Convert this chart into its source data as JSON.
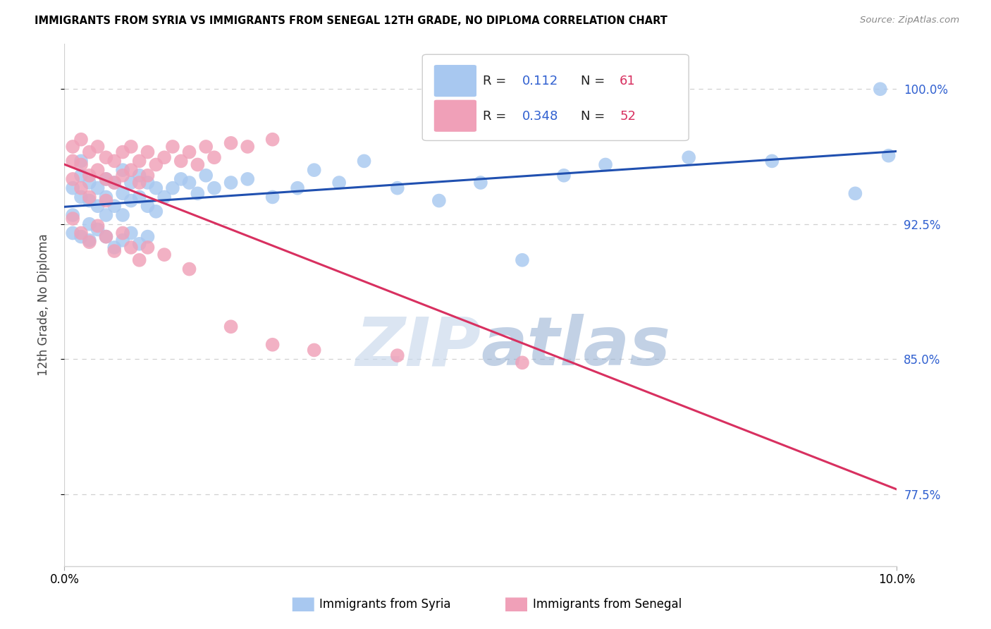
{
  "title": "IMMIGRANTS FROM SYRIA VS IMMIGRANTS FROM SENEGAL 12TH GRADE, NO DIPLOMA CORRELATION CHART",
  "source": "Source: ZipAtlas.com",
  "ylabel": "12th Grade, No Diploma",
  "color_syria": "#a8c8f0",
  "color_senegal": "#f0a0b8",
  "color_syria_line": "#2050b0",
  "color_senegal_line": "#d83060",
  "watermark_zip_color": "#c8d8ec",
  "watermark_atlas_color": "#90acd0",
  "grid_color": "#d0d0d0",
  "ytick_color": "#3060d0",
  "legend_R_color": "#3060d0",
  "legend_N_color": "#d83060",
  "legend_text_color": "#222222",
  "syria_R": "0.112",
  "syria_N": "61",
  "senegal_R": "0.348",
  "senegal_N": "52",
  "xlim": [
    0.0,
    0.1
  ],
  "ylim": [
    0.735,
    1.025
  ],
  "yticks": [
    0.775,
    0.85,
    0.925,
    1.0
  ],
  "ytick_labels": [
    "77.5%",
    "85.0%",
    "92.5%",
    "100.0%"
  ],
  "xtick_labels": [
    "0.0%",
    "10.0%"
  ],
  "syria_x": [
    0.001,
    0.001,
    0.002,
    0.002,
    0.002,
    0.003,
    0.003,
    0.003,
    0.004,
    0.004,
    0.005,
    0.005,
    0.005,
    0.006,
    0.006,
    0.007,
    0.007,
    0.007,
    0.008,
    0.008,
    0.009,
    0.009,
    0.01,
    0.01,
    0.011,
    0.011,
    0.012,
    0.013,
    0.014,
    0.015,
    0.016,
    0.017,
    0.018,
    0.02,
    0.022,
    0.025,
    0.028,
    0.03,
    0.033,
    0.036,
    0.04,
    0.045,
    0.05,
    0.055,
    0.06,
    0.065,
    0.075,
    0.085,
    0.095,
    0.098,
    0.001,
    0.002,
    0.003,
    0.004,
    0.005,
    0.006,
    0.007,
    0.008,
    0.009,
    0.01,
    0.099
  ],
  "syria_y": [
    0.945,
    0.93,
    0.952,
    0.94,
    0.96,
    0.948,
    0.938,
    0.925,
    0.945,
    0.935,
    0.95,
    0.94,
    0.93,
    0.948,
    0.935,
    0.955,
    0.942,
    0.93,
    0.948,
    0.938,
    0.952,
    0.94,
    0.948,
    0.935,
    0.945,
    0.932,
    0.94,
    0.945,
    0.95,
    0.948,
    0.942,
    0.952,
    0.945,
    0.948,
    0.95,
    0.94,
    0.945,
    0.955,
    0.948,
    0.96,
    0.945,
    0.938,
    0.948,
    0.905,
    0.952,
    0.958,
    0.962,
    0.96,
    0.942,
    1.0,
    0.92,
    0.918,
    0.916,
    0.922,
    0.918,
    0.912,
    0.916,
    0.92,
    0.914,
    0.918,
    0.963
  ],
  "senegal_x": [
    0.001,
    0.001,
    0.001,
    0.002,
    0.002,
    0.002,
    0.003,
    0.003,
    0.003,
    0.004,
    0.004,
    0.005,
    0.005,
    0.005,
    0.006,
    0.006,
    0.007,
    0.007,
    0.008,
    0.008,
    0.009,
    0.009,
    0.01,
    0.01,
    0.011,
    0.012,
    0.013,
    0.014,
    0.015,
    0.016,
    0.017,
    0.018,
    0.02,
    0.022,
    0.025,
    0.001,
    0.002,
    0.003,
    0.004,
    0.005,
    0.006,
    0.007,
    0.008,
    0.009,
    0.01,
    0.012,
    0.015,
    0.02,
    0.025,
    0.03,
    0.04,
    0.055
  ],
  "senegal_y": [
    0.968,
    0.95,
    0.96,
    0.972,
    0.958,
    0.945,
    0.965,
    0.952,
    0.94,
    0.968,
    0.955,
    0.962,
    0.95,
    0.938,
    0.96,
    0.948,
    0.965,
    0.952,
    0.968,
    0.955,
    0.96,
    0.948,
    0.965,
    0.952,
    0.958,
    0.962,
    0.968,
    0.96,
    0.965,
    0.958,
    0.968,
    0.962,
    0.97,
    0.968,
    0.972,
    0.928,
    0.92,
    0.915,
    0.924,
    0.918,
    0.91,
    0.92,
    0.912,
    0.905,
    0.912,
    0.908,
    0.9,
    0.868,
    0.858,
    0.855,
    0.852,
    0.848
  ]
}
